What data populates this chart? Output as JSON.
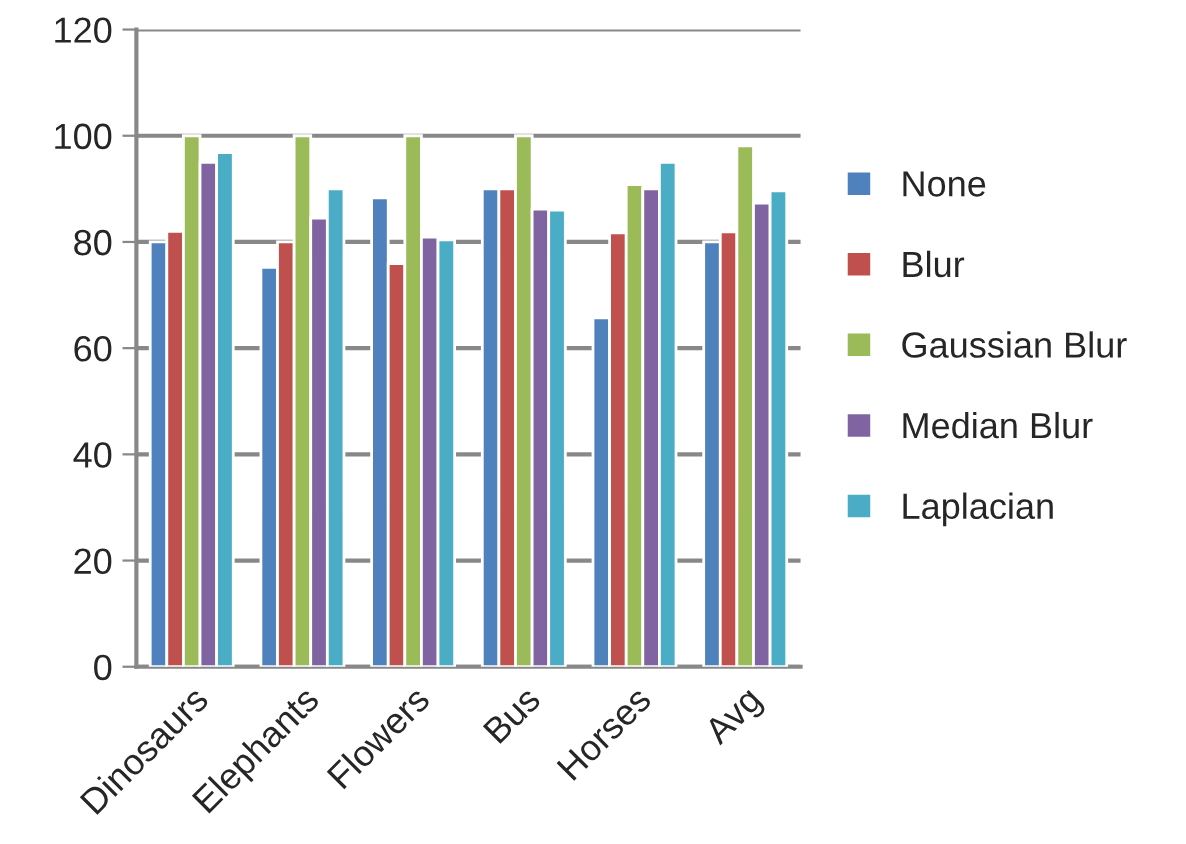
{
  "chart_data": {
    "type": "bar",
    "categories": [
      "Dinosaurs",
      "Elephants",
      "Flowers",
      "Bus",
      "Horses",
      "Avg"
    ],
    "series": [
      {
        "name": "None",
        "color": "#4f81bd",
        "values": [
          80,
          75.2,
          88.3,
          90,
          65.7,
          80
        ]
      },
      {
        "name": "Blur",
        "color": "#c0504d",
        "values": [
          82,
          80,
          75.9,
          90,
          81.7,
          81.9
        ]
      },
      {
        "name": "Gaussian Blur",
        "color": "#9bbb59",
        "values": [
          100,
          100,
          100,
          100,
          90.8,
          98.1
        ]
      },
      {
        "name": "Median Blur",
        "color": "#8064a2",
        "values": [
          95,
          84.5,
          80.9,
          86.2,
          90,
          87.3
        ]
      },
      {
        "name": "Laplacian",
        "color": "#4bacc6",
        "values": [
          96.8,
          90,
          80.4,
          86,
          95,
          89.6
        ]
      }
    ],
    "ylim": [
      0,
      120
    ],
    "yticks": [
      0,
      20,
      40,
      60,
      80,
      100,
      120
    ],
    "grid": "y",
    "legend": "right"
  }
}
